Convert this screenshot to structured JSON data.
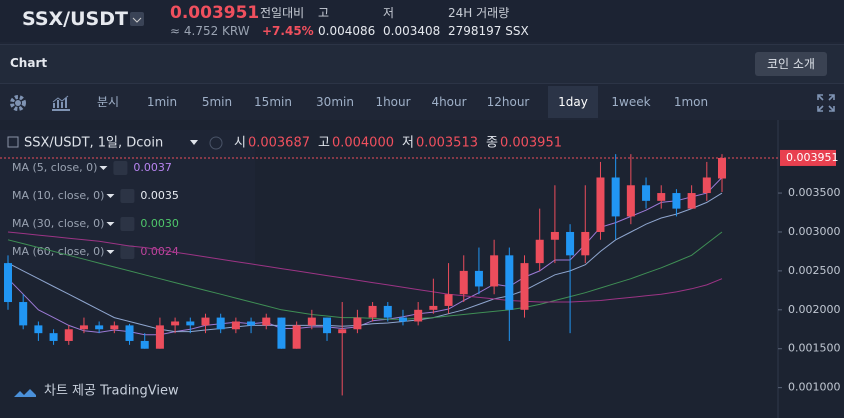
{
  "header": {
    "pair": "SSX/USDT",
    "price": "0.003951",
    "krw": "≈ 4.752 KRW",
    "change_label": "전일대비",
    "change": "+7.45%",
    "high_label": "고",
    "high": "0.004086",
    "low_label": "저",
    "low": "0.003408",
    "volume_label": "24H 거래량",
    "volume": "2798197 SSX"
  },
  "panel": {
    "title": "Chart",
    "button": "코인 소개"
  },
  "toolbar": {
    "intervals": [
      "분시",
      "1min",
      "5min",
      "15min",
      "30min",
      "1hour",
      "4hour",
      "12hour",
      "1day",
      "1week",
      "1mon"
    ],
    "active_index": 8
  },
  "footer": "차트 제공 TradingView",
  "chart_data": {
    "type": "candlestick",
    "legend": {
      "symbol": "SSX/USDT, 1일, Dcoin",
      "open_label": "시",
      "open": "0.003687",
      "high_label": "고",
      "high": "0.004000",
      "low_label": "저",
      "low": "0.003513",
      "close_label": "종",
      "close": "0.003951"
    },
    "up_color": "#ec4d5c",
    "down_color": "#2196f3",
    "ylim": [
      0.0007,
      0.0044
    ],
    "yticks": [
      {
        "value": 0.001,
        "label": "0.001000"
      },
      {
        "value": 0.0015,
        "label": "0.001500"
      },
      {
        "value": 0.002,
        "label": "0.002000"
      },
      {
        "value": 0.0025,
        "label": "0.002500"
      },
      {
        "value": 0.003,
        "label": "0.003000"
      },
      {
        "value": 0.0035,
        "label": "0.003500"
      }
    ],
    "last_price": 0.003951,
    "open": [
      0.0026,
      0.0021,
      0.0018,
      0.0017,
      0.0016,
      0.00175,
      0.0018,
      0.00175,
      0.0018,
      0.0016,
      0.0015,
      0.0018,
      0.00185,
      0.0018,
      0.0019,
      0.00175,
      0.00185,
      0.0018,
      0.0019,
      0.0015,
      0.0018,
      0.0019,
      0.0017,
      0.00175,
      0.0019,
      0.00205,
      0.0019,
      0.00185,
      0.002,
      0.00205,
      0.0022,
      0.0025,
      0.0023,
      0.0027,
      0.002,
      0.0026,
      0.0029,
      0.003,
      0.0027,
      0.003,
      0.0037,
      0.0032,
      0.0036,
      0.0034,
      0.0035,
      0.0033,
      0.0035,
      0.003687
    ],
    "high": [
      0.0027,
      0.0022,
      0.00185,
      0.00175,
      0.0018,
      0.0019,
      0.00185,
      0.00185,
      0.00182,
      0.0017,
      0.0019,
      0.0019,
      0.0019,
      0.00195,
      0.00195,
      0.0019,
      0.0019,
      0.00195,
      0.0019,
      0.00185,
      0.002,
      0.0019,
      0.0021,
      0.002,
      0.0021,
      0.0021,
      0.002,
      0.0021,
      0.0024,
      0.0026,
      0.0027,
      0.0028,
      0.0029,
      0.0028,
      0.0027,
      0.0033,
      0.0036,
      0.0031,
      0.0036,
      0.0039,
      0.004,
      0.004,
      0.0037,
      0.0036,
      0.00355,
      0.0036,
      0.0039,
      0.004
    ],
    "low": [
      0.002,
      0.00175,
      0.0016,
      0.00155,
      0.00155,
      0.0017,
      0.0017,
      0.0017,
      0.00155,
      0.0015,
      0.0015,
      0.0017,
      0.0017,
      0.0017,
      0.0017,
      0.0017,
      0.0017,
      0.00175,
      0.0015,
      0.0015,
      0.00175,
      0.0016,
      0.0009,
      0.0017,
      0.00185,
      0.00185,
      0.0018,
      0.0018,
      0.00195,
      0.00195,
      0.0021,
      0.0022,
      0.0022,
      0.0016,
      0.0019,
      0.0025,
      0.0026,
      0.0017,
      0.0026,
      0.0029,
      0.0029,
      0.0031,
      0.0033,
      0.0033,
      0.0032,
      0.0033,
      0.0034,
      0.003513
    ],
    "close": [
      0.0021,
      0.0018,
      0.0017,
      0.0016,
      0.00175,
      0.0018,
      0.00175,
      0.0018,
      0.0016,
      0.0015,
      0.0018,
      0.00185,
      0.0018,
      0.0019,
      0.00175,
      0.00185,
      0.0018,
      0.0019,
      0.0015,
      0.0018,
      0.0019,
      0.0017,
      0.00175,
      0.0019,
      0.00205,
      0.0019,
      0.00185,
      0.002,
      0.00205,
      0.0022,
      0.0025,
      0.0023,
      0.0027,
      0.002,
      0.0026,
      0.0029,
      0.003,
      0.0027,
      0.003,
      0.0037,
      0.0032,
      0.0036,
      0.0034,
      0.0035,
      0.0033,
      0.0035,
      0.0037,
      0.003951
    ],
    "ma": [
      {
        "name": "MA (5, close, 0)",
        "color": "#9c7ad6",
        "label_color": "#b784f0",
        "value_label": "0.0037",
        "values": [
          0.0024,
          0.0022,
          0.002,
          0.0019,
          0.0018,
          0.00173,
          0.00171,
          0.00174,
          0.00172,
          0.00168,
          0.00168,
          0.00172,
          0.00175,
          0.0018,
          0.00182,
          0.00184,
          0.00182,
          0.00184,
          0.00176,
          0.00176,
          0.00178,
          0.00178,
          0.00176,
          0.00178,
          0.00186,
          0.00188,
          0.00191,
          0.00195,
          0.00197,
          0.00201,
          0.00212,
          0.00222,
          0.00233,
          0.0023,
          0.00242,
          0.0025,
          0.00264,
          0.00264,
          0.00284,
          0.00306,
          0.00312,
          0.0032,
          0.00328,
          0.00338,
          0.0034,
          0.00345,
          0.0035,
          0.0037
        ]
      },
      {
        "name": "MA (10, close, 0)",
        "color": "#8fa6cf",
        "label_color": "#e8ecf2",
        "value_label": "0.0035",
        "values": [
          0.0026,
          0.0025,
          0.0024,
          0.0023,
          0.0022,
          0.0021,
          0.002,
          0.0019,
          0.00185,
          0.0018,
          0.00175,
          0.00172,
          0.00172,
          0.00174,
          0.00176,
          0.00178,
          0.0018,
          0.0018,
          0.0018,
          0.0018,
          0.0018,
          0.0018,
          0.00179,
          0.0018,
          0.00182,
          0.00183,
          0.00185,
          0.00187,
          0.0019,
          0.00195,
          0.002,
          0.00207,
          0.00214,
          0.00218,
          0.00225,
          0.00235,
          0.00245,
          0.0025,
          0.00258,
          0.00275,
          0.0029,
          0.003,
          0.0031,
          0.00318,
          0.00323,
          0.0033,
          0.00338,
          0.0035
        ]
      },
      {
        "name": "MA (30, close, 0)",
        "color": "#3f8f55",
        "label_color": "#4fc76b",
        "value_label": "0.0030",
        "values": [
          0.0029,
          0.00285,
          0.0028,
          0.00275,
          0.0027,
          0.00265,
          0.0026,
          0.00255,
          0.0025,
          0.00245,
          0.0024,
          0.00235,
          0.0023,
          0.00225,
          0.0022,
          0.00215,
          0.0021,
          0.00205,
          0.002,
          0.00197,
          0.00194,
          0.00192,
          0.0019,
          0.0019,
          0.00189,
          0.00188,
          0.00188,
          0.00189,
          0.0019,
          0.00192,
          0.00194,
          0.00196,
          0.00198,
          0.002,
          0.00203,
          0.00207,
          0.00212,
          0.00217,
          0.00222,
          0.00228,
          0.00234,
          0.0024,
          0.00247,
          0.00254,
          0.00262,
          0.0027,
          0.00285,
          0.003
        ]
      },
      {
        "name": "MA (60, close, 0)",
        "color": "#9c3485",
        "label_color": "#c0449f",
        "value_label": "0.0024",
        "values": [
          0.003,
          0.00298,
          0.00296,
          0.00294,
          0.00292,
          0.0029,
          0.00288,
          0.00285,
          0.00282,
          0.0028,
          0.00277,
          0.00274,
          0.00271,
          0.00268,
          0.00265,
          0.00262,
          0.00259,
          0.00256,
          0.00253,
          0.0025,
          0.00247,
          0.00244,
          0.00241,
          0.00238,
          0.00235,
          0.00232,
          0.00229,
          0.00226,
          0.00223,
          0.0022,
          0.00218,
          0.00216,
          0.00214,
          0.00212,
          0.00211,
          0.0021,
          0.0021,
          0.0021,
          0.00211,
          0.00212,
          0.00214,
          0.00216,
          0.00218,
          0.0022,
          0.00223,
          0.00227,
          0.00232,
          0.0024
        ]
      }
    ]
  }
}
